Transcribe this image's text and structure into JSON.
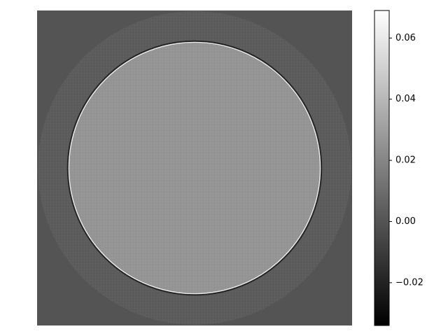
{
  "chart_data": {
    "type": "heatmap",
    "title": "",
    "xlabel": "",
    "ylabel": "",
    "axes_visible": false,
    "colormap": "gray",
    "value_range": [
      -0.034,
      0.069
    ],
    "image_description_values": {
      "background": 0.0,
      "outer_ring": 0.003,
      "inner_disk": 0.026,
      "edge_highlight": 0.06,
      "edge_shadow": -0.02
    },
    "colorbar": {
      "ticks": [
        {
          "value": 0.06,
          "label": "0.06"
        },
        {
          "value": 0.04,
          "label": "0.04"
        },
        {
          "value": 0.02,
          "label": "0.02"
        },
        {
          "value": 0.0,
          "label": "0.00"
        },
        {
          "value": -0.02,
          "label": "−0.02"
        }
      ]
    }
  }
}
